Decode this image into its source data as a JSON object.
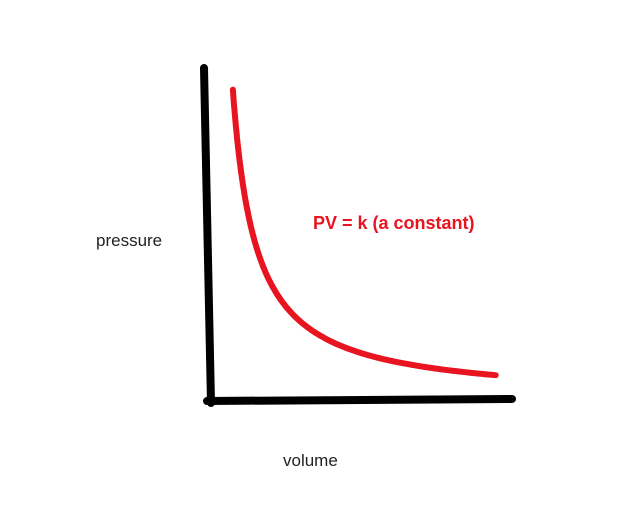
{
  "chart_data": {
    "type": "line",
    "title": "",
    "xlabel": "volume",
    "ylabel": "pressure",
    "annotation": "PV = k (a constant)",
    "grid": false,
    "legend": "none",
    "axis_color": "#000000",
    "curve_color": "#e8141f",
    "series": [
      {
        "x": [
          0.08,
          0.1,
          0.12,
          0.15,
          0.2,
          0.25,
          0.3,
          0.4,
          0.5,
          0.6,
          0.7,
          0.8,
          0.9,
          1.0
        ],
        "y": [
          1.0,
          0.8,
          0.667,
          0.533,
          0.4,
          0.32,
          0.267,
          0.2,
          0.16,
          0.133,
          0.114,
          0.1,
          0.089,
          0.08
        ]
      }
    ]
  }
}
